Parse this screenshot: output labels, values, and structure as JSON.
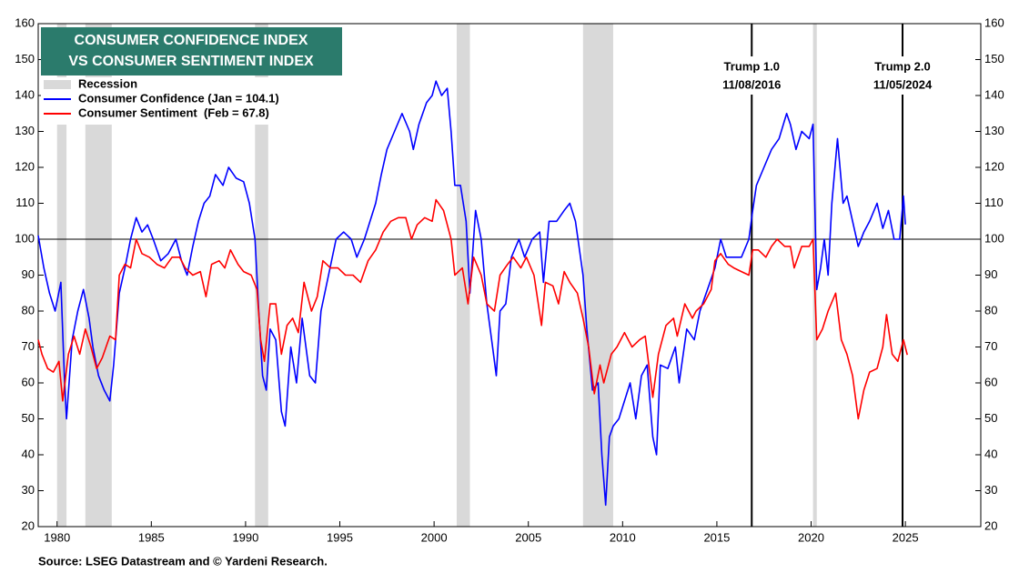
{
  "chart_data": {
    "type": "line",
    "title_lines": [
      "CONSUMER CONFIDENCE INDEX",
      "VS CONSUMER SENTIMENT INDEX"
    ],
    "source": "Source: LSEG Datastream and © Yardeni Research.",
    "xlim": [
      1979,
      2029
    ],
    "xticks": [
      1980,
      1985,
      1990,
      1995,
      2000,
      2005,
      2010,
      2015,
      2020,
      2025
    ],
    "ylim": [
      20,
      160
    ],
    "yticks": [
      20,
      30,
      40,
      50,
      60,
      70,
      80,
      90,
      100,
      110,
      120,
      130,
      140,
      150,
      160
    ],
    "y2lim": [
      20,
      160
    ],
    "y2ticks": [
      20,
      30,
      40,
      50,
      60,
      70,
      80,
      90,
      100,
      110,
      120,
      130,
      140,
      150,
      160
    ],
    "reference_line": 100,
    "recession_name": "Recession",
    "recession_color": "#d9d9d9",
    "recessions": [
      [
        1980.0,
        1980.5
      ],
      [
        1981.5,
        1982.9
      ],
      [
        1990.5,
        1991.2
      ],
      [
        2001.2,
        2001.9
      ],
      [
        2007.9,
        2009.5
      ],
      [
        2020.1,
        2020.3
      ]
    ],
    "annotations": [
      {
        "x": 2016.85,
        "label": "Trump 1.0",
        "date": "11/08/2016"
      },
      {
        "x": 2024.85,
        "label": "Trump 2.0",
        "date": "11/05/2024"
      }
    ],
    "series": [
      {
        "name": "Consumer Confidence (Jan = 104.1)",
        "color": "#0000ff",
        "x": [
          1979.0,
          1979.3,
          1979.6,
          1979.9,
          1980.2,
          1980.4,
          1980.5,
          1980.8,
          1981.1,
          1981.4,
          1981.7,
          1981.9,
          1982.2,
          1982.5,
          1982.8,
          1983.0,
          1983.3,
          1983.6,
          1983.9,
          1984.2,
          1984.5,
          1984.8,
          1985.1,
          1985.5,
          1985.9,
          1986.3,
          1986.6,
          1986.9,
          1987.2,
          1987.5,
          1987.8,
          1988.1,
          1988.4,
          1988.8,
          1989.1,
          1989.5,
          1989.9,
          1990.2,
          1990.5,
          1990.7,
          1990.9,
          1991.1,
          1991.3,
          1991.6,
          1991.9,
          1992.1,
          1992.4,
          1992.7,
          1993.0,
          1993.4,
          1993.7,
          1994.0,
          1994.4,
          1994.8,
          1995.2,
          1995.6,
          1995.9,
          1996.3,
          1996.6,
          1996.9,
          1997.2,
          1997.5,
          1997.9,
          1998.3,
          1998.7,
          1998.9,
          1999.2,
          1999.6,
          1999.9,
          2000.1,
          2000.4,
          2000.7,
          2000.9,
          2001.1,
          2001.4,
          2001.7,
          2001.9,
          2002.2,
          2002.5,
          2002.8,
          2003.1,
          2003.3,
          2003.5,
          2003.8,
          2004.1,
          2004.5,
          2004.8,
          2005.2,
          2005.6,
          2005.8,
          2006.1,
          2006.5,
          2006.9,
          2007.2,
          2007.5,
          2007.9,
          2008.1,
          2008.4,
          2008.7,
          2008.9,
          2009.1,
          2009.3,
          2009.5,
          2009.8,
          2010.1,
          2010.4,
          2010.7,
          2011.0,
          2011.3,
          2011.6,
          2011.8,
          2012.0,
          2012.4,
          2012.8,
          2013.0,
          2013.4,
          2013.8,
          2014.1,
          2014.5,
          2014.9,
          2015.2,
          2015.5,
          2015.9,
          2016.3,
          2016.7,
          2016.9,
          2017.1,
          2017.5,
          2017.9,
          2018.3,
          2018.7,
          2018.9,
          2019.2,
          2019.5,
          2019.9,
          2020.1,
          2020.3,
          2020.5,
          2020.7,
          2020.9,
          2021.1,
          2021.4,
          2021.7,
          2021.9,
          2022.2,
          2022.5,
          2022.8,
          2023.1,
          2023.5,
          2023.8,
          2024.1,
          2024.4,
          2024.7,
          2024.9,
          2025.0
        ],
        "values": [
          101,
          92,
          85,
          80,
          88,
          60,
          50,
          72,
          80,
          86,
          78,
          70,
          62,
          58,
          55,
          65,
          85,
          92,
          100,
          106,
          102,
          104,
          100,
          94,
          96,
          100,
          94,
          90,
          98,
          105,
          110,
          112,
          118,
          115,
          120,
          117,
          116,
          110,
          100,
          80,
          62,
          58,
          75,
          72,
          52,
          48,
          70,
          60,
          78,
          62,
          60,
          80,
          90,
          100,
          102,
          100,
          95,
          100,
          105,
          110,
          118,
          125,
          130,
          135,
          130,
          125,
          132,
          138,
          140,
          144,
          140,
          142,
          130,
          115,
          115,
          105,
          85,
          108,
          100,
          82,
          70,
          62,
          80,
          82,
          95,
          100,
          95,
          100,
          102,
          88,
          105,
          105,
          108,
          110,
          105,
          90,
          75,
          58,
          60,
          40,
          26,
          45,
          48,
          50,
          55,
          60,
          50,
          62,
          65,
          45,
          40,
          65,
          64,
          70,
          60,
          75,
          72,
          80,
          86,
          92,
          100,
          95,
          95,
          95,
          100,
          108,
          115,
          120,
          125,
          128,
          135,
          132,
          125,
          130,
          128,
          132,
          86,
          92,
          100,
          90,
          110,
          128,
          110,
          112,
          105,
          98,
          102,
          105,
          110,
          103,
          108,
          100,
          100,
          112,
          104.1
        ]
      },
      {
        "name": "Consumer Sentiment  (Feb = 67.8)",
        "color": "#ff0000",
        "x": [
          1979.0,
          1979.2,
          1979.5,
          1979.8,
          1980.1,
          1980.3,
          1980.6,
          1980.9,
          1981.2,
          1981.5,
          1981.8,
          1982.1,
          1982.4,
          1982.8,
          1983.1,
          1983.3,
          1983.6,
          1983.9,
          1984.2,
          1984.5,
          1984.9,
          1985.3,
          1985.7,
          1986.1,
          1986.5,
          1986.8,
          1987.2,
          1987.6,
          1987.9,
          1988.2,
          1988.6,
          1988.9,
          1989.2,
          1989.6,
          1989.9,
          1990.3,
          1990.6,
          1990.8,
          1991.0,
          1991.3,
          1991.6,
          1991.9,
          1992.2,
          1992.5,
          1992.8,
          1993.1,
          1993.5,
          1993.8,
          1994.1,
          1994.5,
          1994.9,
          1995.3,
          1995.7,
          1996.1,
          1996.5,
          1996.9,
          1997.3,
          1997.7,
          1998.1,
          1998.5,
          1998.8,
          1999.1,
          1999.5,
          1999.9,
          2000.1,
          2000.5,
          2000.9,
          2001.1,
          2001.5,
          2001.8,
          2002.1,
          2002.5,
          2002.8,
          2003.2,
          2003.5,
          2003.9,
          2004.2,
          2004.6,
          2004.9,
          2005.3,
          2005.7,
          2005.9,
          2006.3,
          2006.6,
          2006.9,
          2007.2,
          2007.6,
          2007.9,
          2008.2,
          2008.5,
          2008.8,
          2009.0,
          2009.4,
          2009.7,
          2010.1,
          2010.5,
          2010.9,
          2011.2,
          2011.6,
          2011.9,
          2012.3,
          2012.7,
          2012.9,
          2013.3,
          2013.7,
          2013.9,
          2014.3,
          2014.7,
          2014.9,
          2015.2,
          2015.6,
          2015.9,
          2016.3,
          2016.7,
          2016.9,
          2017.2,
          2017.6,
          2017.9,
          2018.2,
          2018.6,
          2018.9,
          2019.1,
          2019.5,
          2019.9,
          2020.1,
          2020.3,
          2020.6,
          2020.9,
          2021.3,
          2021.6,
          2021.9,
          2022.2,
          2022.5,
          2022.8,
          2023.1,
          2023.5,
          2023.8,
          2024.0,
          2024.3,
          2024.6,
          2024.9,
          2025.1
        ],
        "values": [
          72,
          68,
          64,
          63,
          66,
          55,
          68,
          73,
          68,
          75,
          70,
          64,
          67,
          73,
          72,
          90,
          93,
          92,
          100,
          96,
          95,
          93,
          92,
          95,
          95,
          92,
          90,
          91,
          84,
          93,
          94,
          92,
          97,
          93,
          91,
          90,
          86,
          72,
          66,
          82,
          82,
          68,
          76,
          78,
          74,
          88,
          80,
          84,
          94,
          92,
          92,
          90,
          90,
          88,
          94,
          97,
          102,
          105,
          106,
          106,
          100,
          104,
          106,
          105,
          111,
          108,
          100,
          90,
          92,
          82,
          95,
          90,
          82,
          80,
          90,
          93,
          95,
          92,
          95,
          90,
          76,
          88,
          87,
          82,
          91,
          88,
          85,
          78,
          70,
          57,
          65,
          60,
          68,
          70,
          74,
          70,
          72,
          73,
          56,
          68,
          76,
          78,
          73,
          82,
          78,
          80,
          82,
          86,
          94,
          96,
          93,
          92,
          91,
          90,
          97,
          97,
          95,
          98,
          100,
          98,
          98,
          92,
          98,
          98,
          100,
          72,
          75,
          80,
          85,
          72,
          68,
          62,
          50,
          58,
          63,
          64,
          70,
          79,
          68,
          66,
          72,
          67.8
        ]
      }
    ]
  }
}
